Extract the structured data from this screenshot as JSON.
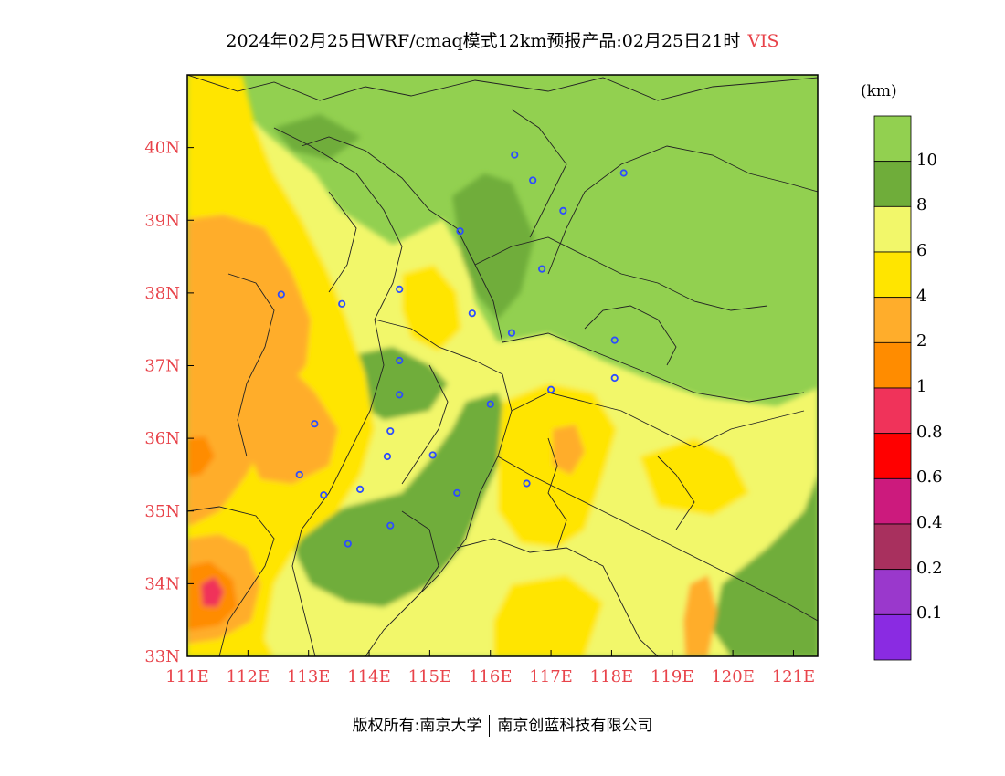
{
  "title": {
    "main": "2024年02月25日WRF/cmaq模式12km预报产品:02月25日21时",
    "variable": "VIS"
  },
  "colors": {
    "label_red": "#e8434a",
    "city_marker": "#2c4dff",
    "boundary": "#222222"
  },
  "map": {
    "lon_min": 111,
    "lon_max": 121.4,
    "lat_min": 33,
    "lat_max": 41,
    "lat_ticks": [
      {
        "value": 33,
        "label": "33N"
      },
      {
        "value": 34,
        "label": "34N"
      },
      {
        "value": 35,
        "label": "35N"
      },
      {
        "value": 36,
        "label": "36N"
      },
      {
        "value": 37,
        "label": "37N"
      },
      {
        "value": 38,
        "label": "38N"
      },
      {
        "value": 39,
        "label": "39N"
      },
      {
        "value": 40,
        "label": "40N"
      }
    ],
    "lon_ticks": [
      {
        "value": 111,
        "label": "111E"
      },
      {
        "value": 112,
        "label": "112E"
      },
      {
        "value": 113,
        "label": "113E"
      },
      {
        "value": 114,
        "label": "114E"
      },
      {
        "value": 115,
        "label": "115E"
      },
      {
        "value": 116,
        "label": "116E"
      },
      {
        "value": 117,
        "label": "117E"
      },
      {
        "value": 118,
        "label": "118E"
      },
      {
        "value": 119,
        "label": "119E"
      },
      {
        "value": 120,
        "label": "120E"
      },
      {
        "value": 121,
        "label": "121E"
      }
    ],
    "cities": [
      {
        "lon": 116.4,
        "lat": 39.9
      },
      {
        "lon": 116.7,
        "lat": 39.55
      },
      {
        "lon": 117.2,
        "lat": 39.13
      },
      {
        "lon": 118.2,
        "lat": 39.65
      },
      {
        "lon": 115.5,
        "lat": 38.85
      },
      {
        "lon": 116.85,
        "lat": 38.33
      },
      {
        "lon": 112.55,
        "lat": 37.98
      },
      {
        "lon": 113.55,
        "lat": 37.85
      },
      {
        "lon": 114.5,
        "lat": 38.05
      },
      {
        "lon": 115.7,
        "lat": 37.72
      },
      {
        "lon": 116.35,
        "lat": 37.45
      },
      {
        "lon": 118.05,
        "lat": 37.35
      },
      {
        "lon": 118.05,
        "lat": 36.83
      },
      {
        "lon": 117.0,
        "lat": 36.67
      },
      {
        "lon": 114.5,
        "lat": 37.07
      },
      {
        "lon": 114.5,
        "lat": 36.6
      },
      {
        "lon": 116.0,
        "lat": 36.47
      },
      {
        "lon": 113.1,
        "lat": 36.2
      },
      {
        "lon": 114.35,
        "lat": 36.1
      },
      {
        "lon": 114.3,
        "lat": 35.75
      },
      {
        "lon": 115.05,
        "lat": 35.77
      },
      {
        "lon": 112.85,
        "lat": 35.5
      },
      {
        "lon": 113.25,
        "lat": 35.22
      },
      {
        "lon": 113.85,
        "lat": 35.3
      },
      {
        "lon": 115.45,
        "lat": 35.25
      },
      {
        "lon": 116.6,
        "lat": 35.38
      },
      {
        "lon": 114.35,
        "lat": 34.8
      },
      {
        "lon": 113.65,
        "lat": 34.55
      }
    ]
  },
  "colorbar": {
    "unit": "(km)",
    "bins": [
      {
        "color": "#92d050"
      },
      {
        "color": "#6fad3a"
      },
      {
        "color": "#f2f76a"
      },
      {
        "color": "#ffe500"
      },
      {
        "color": "#ffad2b"
      },
      {
        "color": "#ff8c00"
      },
      {
        "color": "#f0335a"
      },
      {
        "color": "#ff0000"
      },
      {
        "color": "#cc1a7d"
      },
      {
        "color": "#a8305e"
      },
      {
        "color": "#9a38cc"
      },
      {
        "color": "#8a2be2"
      }
    ],
    "labels": [
      "10",
      "8",
      "6",
      "4",
      "2",
      "1",
      "0.8",
      "0.6",
      "0.4",
      "0.2",
      "0.1"
    ]
  },
  "footer": {
    "copyright": "版权所有:南京大学",
    "company": "南京创蓝科技有限公司"
  }
}
